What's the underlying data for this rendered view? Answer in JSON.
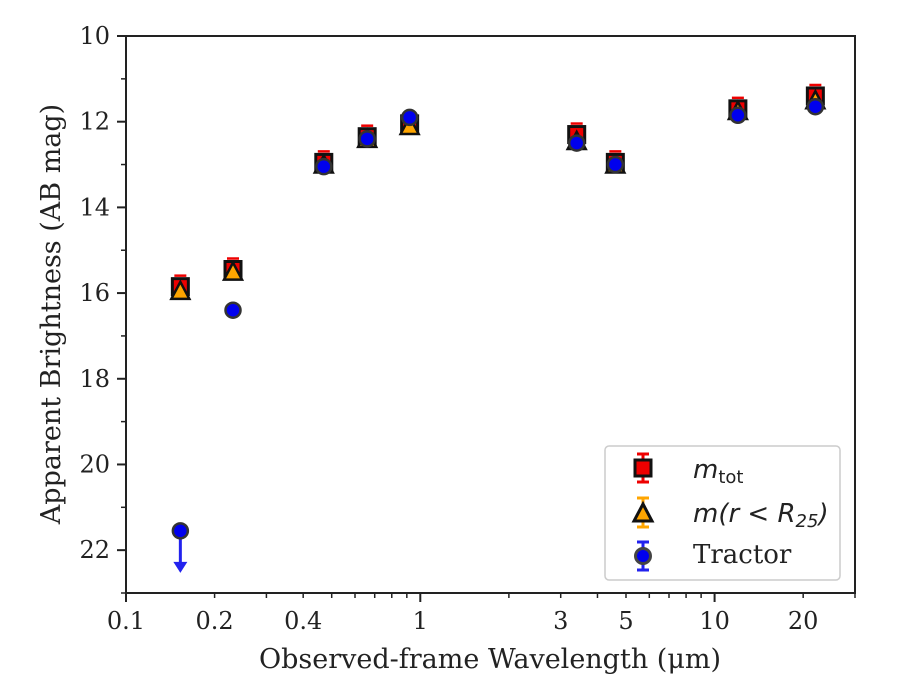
{
  "chart_data": {
    "type": "scatter",
    "xlabel": "Observed-frame Wavelength (μm)",
    "ylabel": "Apparent Brightness (AB mag)",
    "x_scale": "log",
    "xlim": [
      0.1,
      30
    ],
    "ylim": [
      23,
      10
    ],
    "y_inverted": true,
    "x_ticks": [
      0.1,
      0.2,
      0.4,
      1,
      3,
      5,
      10,
      20
    ],
    "x_tick_labels": [
      "0.1",
      "0.2",
      "0.4",
      "1",
      "3",
      "5",
      "10",
      "20"
    ],
    "y_ticks": [
      10,
      12,
      14,
      16,
      18,
      20,
      22
    ],
    "y_tick_labels": [
      "10",
      "12",
      "14",
      "16",
      "18",
      "20",
      "22"
    ],
    "legend_position": "lower-right",
    "series": [
      {
        "name": "m_tot",
        "legend_label": "m_tot",
        "marker": "square",
        "color": "#ee0000",
        "edge_color": "#111111",
        "x": [
          0.153,
          0.231,
          0.47,
          0.66,
          0.92,
          3.4,
          4.6,
          12.0,
          22.0
        ],
        "y": [
          15.85,
          15.45,
          12.95,
          12.35,
          12.05,
          12.3,
          12.95,
          11.7,
          11.4
        ]
      },
      {
        "name": "m(r<R25)",
        "legend_label": "m(r < R25)",
        "marker": "triangle",
        "color": "#ffa500",
        "edge_color": "#111111",
        "x": [
          0.153,
          0.231,
          0.47,
          0.66,
          0.92,
          3.4,
          4.6,
          12.0,
          22.0
        ],
        "y": [
          15.95,
          15.5,
          13.0,
          12.4,
          12.1,
          12.45,
          13.0,
          11.75,
          11.5
        ]
      },
      {
        "name": "Tractor",
        "legend_label": "Tractor",
        "marker": "circle",
        "color": "#0000ee",
        "edge_color": "#333333",
        "x": [
          0.153,
          0.231,
          0.47,
          0.66,
          0.92,
          3.4,
          4.6,
          12.0,
          22.0
        ],
        "y": [
          21.55,
          16.4,
          13.05,
          12.4,
          11.9,
          12.5,
          13.0,
          11.85,
          11.65
        ],
        "upper_limit_index": 0
      }
    ]
  }
}
